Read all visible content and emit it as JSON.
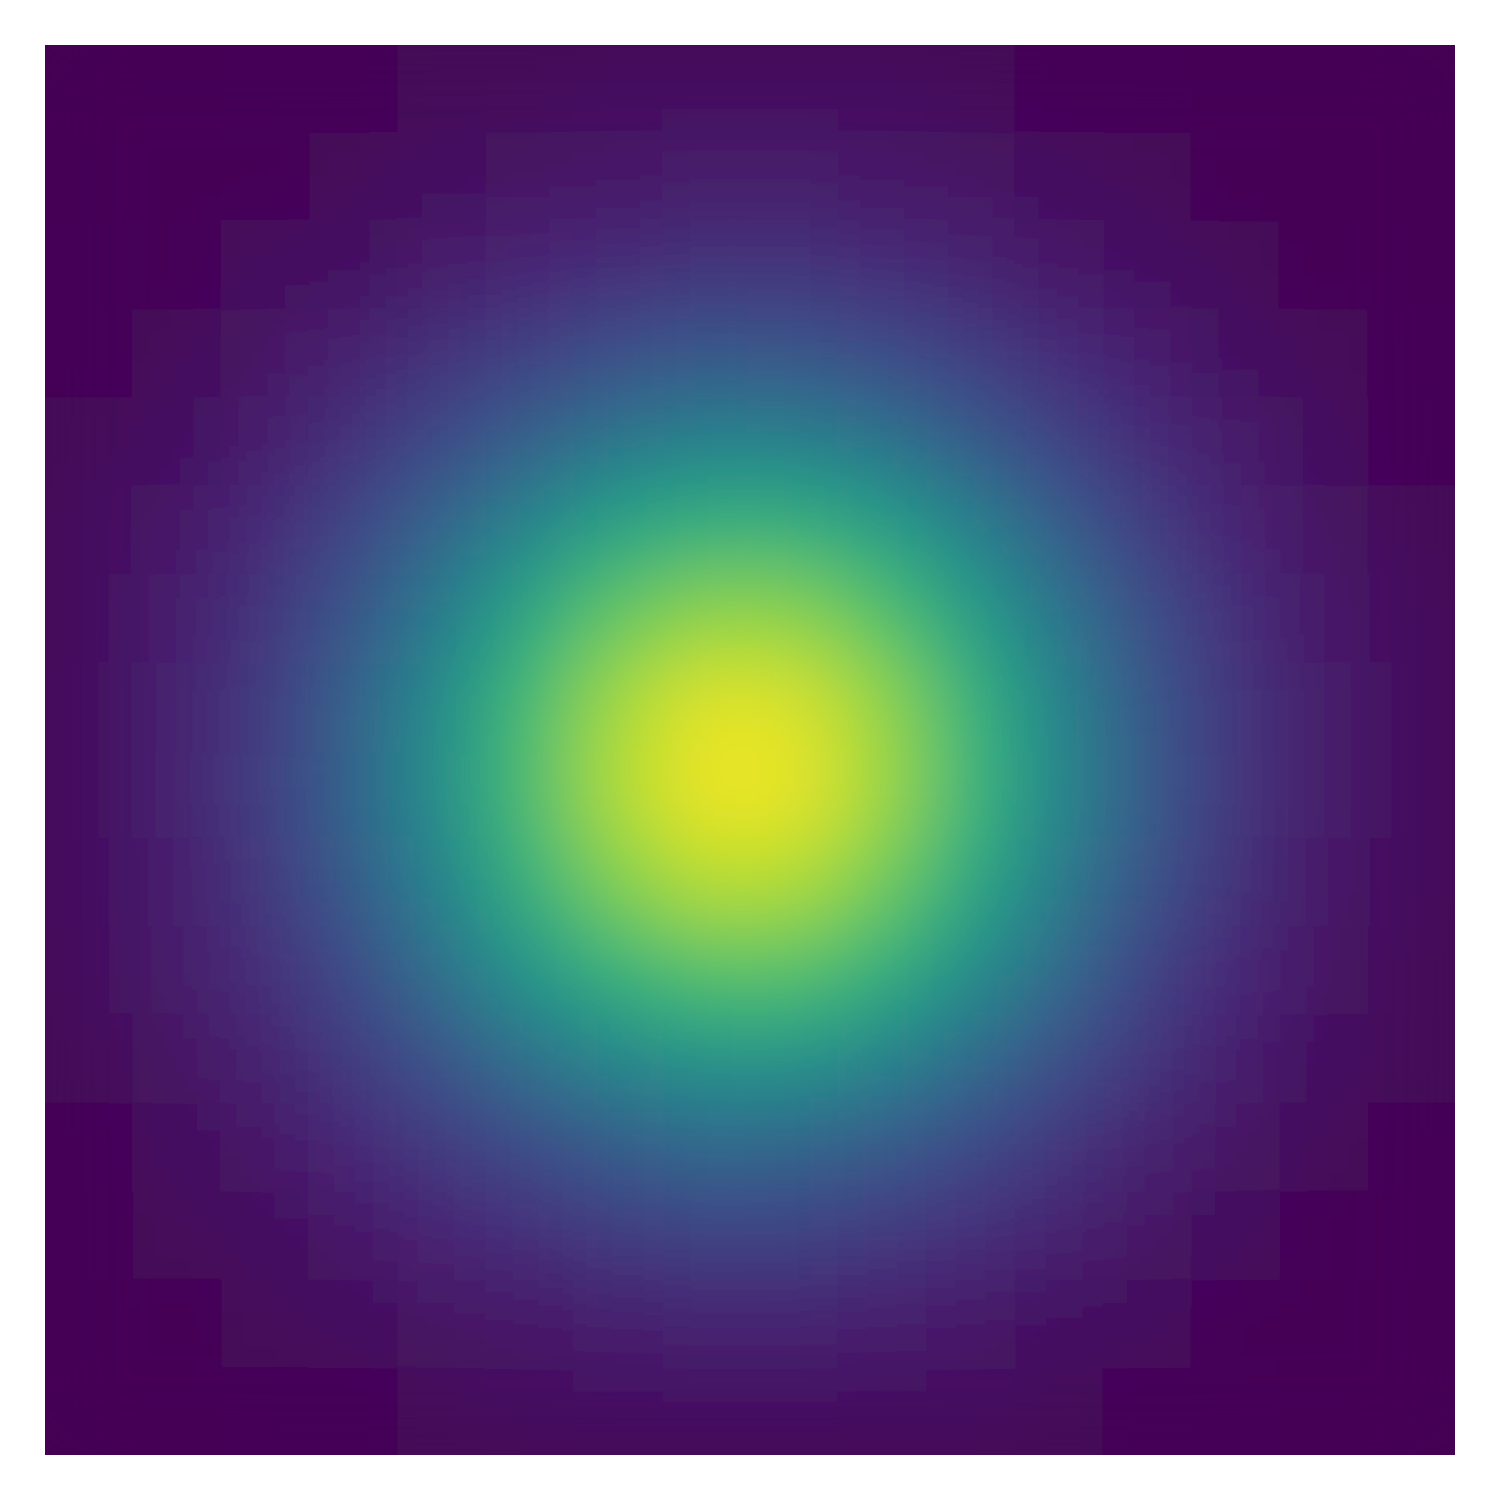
{
  "chart_data": {
    "type": "heatmap",
    "clim": [
      0,
      1
    ],
    "colormap": [
      "#440154",
      "#482878",
      "#3e4a89",
      "#31688e",
      "#26828e",
      "#1f9e89",
      "#35b779",
      "#6ece58",
      "#b5de2b",
      "#fde725"
    ],
    "values": [
      [
        0,
        0,
        0.01,
        0.01,
        0.02,
        0.02,
        0.03,
        0.03,
        0.03,
        0.03,
        0.02,
        0.01,
        0.01,
        0,
        0,
        0
      ],
      [
        0,
        0.01,
        0.01,
        0.02,
        0.04,
        0.05,
        0.06,
        0.07,
        0.07,
        0.06,
        0.05,
        0.03,
        0.02,
        0.01,
        0,
        0
      ],
      [
        0.01,
        0.01,
        0.03,
        0.04,
        0.07,
        0.1,
        0.12,
        0.14,
        0.14,
        0.12,
        0.09,
        0.06,
        0.04,
        0.02,
        0.01,
        0
      ],
      [
        0.01,
        0.02,
        0.05,
        0.09,
        0.14,
        0.19,
        0.24,
        0.27,
        0.26,
        0.23,
        0.18,
        0.12,
        0.08,
        0.04,
        0.02,
        0.01
      ],
      [
        0.02,
        0.04,
        0.08,
        0.14,
        0.22,
        0.31,
        0.39,
        0.44,
        0.43,
        0.38,
        0.29,
        0.2,
        0.12,
        0.07,
        0.03,
        0.01
      ],
      [
        0.03,
        0.06,
        0.12,
        0.21,
        0.33,
        0.46,
        0.58,
        0.64,
        0.64,
        0.56,
        0.44,
        0.3,
        0.18,
        0.1,
        0.05,
        0.02
      ],
      [
        0.03,
        0.08,
        0.15,
        0.27,
        0.42,
        0.6,
        0.75,
        0.83,
        0.82,
        0.72,
        0.56,
        0.39,
        0.24,
        0.13,
        0.06,
        0.03
      ],
      [
        0.04,
        0.09,
        0.17,
        0.31,
        0.49,
        0.69,
        0.86,
        0.96,
        0.95,
        0.83,
        0.65,
        0.45,
        0.27,
        0.15,
        0.07,
        0.03
      ],
      [
        0.04,
        0.09,
        0.18,
        0.32,
        0.5,
        0.7,
        0.88,
        0.98,
        0.97,
        0.85,
        0.66,
        0.46,
        0.28,
        0.15,
        0.07,
        0.03
      ],
      [
        0.04,
        0.08,
        0.16,
        0.29,
        0.45,
        0.64,
        0.8,
        0.89,
        0.88,
        0.77,
        0.6,
        0.41,
        0.25,
        0.14,
        0.06,
        0.03
      ],
      [
        0.03,
        0.07,
        0.13,
        0.23,
        0.37,
        0.52,
        0.65,
        0.72,
        0.72,
        0.63,
        0.49,
        0.34,
        0.2,
        0.11,
        0.05,
        0.02
      ],
      [
        0.02,
        0.05,
        0.09,
        0.17,
        0.26,
        0.37,
        0.46,
        0.51,
        0.51,
        0.45,
        0.35,
        0.24,
        0.15,
        0.08,
        0.04,
        0.02
      ],
      [
        0.01,
        0.03,
        0.06,
        0.11,
        0.17,
        0.23,
        0.29,
        0.33,
        0.32,
        0.28,
        0.22,
        0.15,
        0.09,
        0.05,
        0.02,
        0.01
      ],
      [
        0.01,
        0.02,
        0.03,
        0.06,
        0.1,
        0.13,
        0.17,
        0.19,
        0.19,
        0.16,
        0.13,
        0.09,
        0.05,
        0.03,
        0.01,
        0.01
      ],
      [
        0,
        0.01,
        0.02,
        0.03,
        0.05,
        0.06,
        0.08,
        0.09,
        0.09,
        0.08,
        0.06,
        0.04,
        0.03,
        0.01,
        0.01,
        0
      ],
      [
        0,
        0,
        0.01,
        0.01,
        0.02,
        0.03,
        0.04,
        0.04,
        0.04,
        0.03,
        0.03,
        0.02,
        0.01,
        0.01,
        0,
        0
      ]
    ]
  }
}
